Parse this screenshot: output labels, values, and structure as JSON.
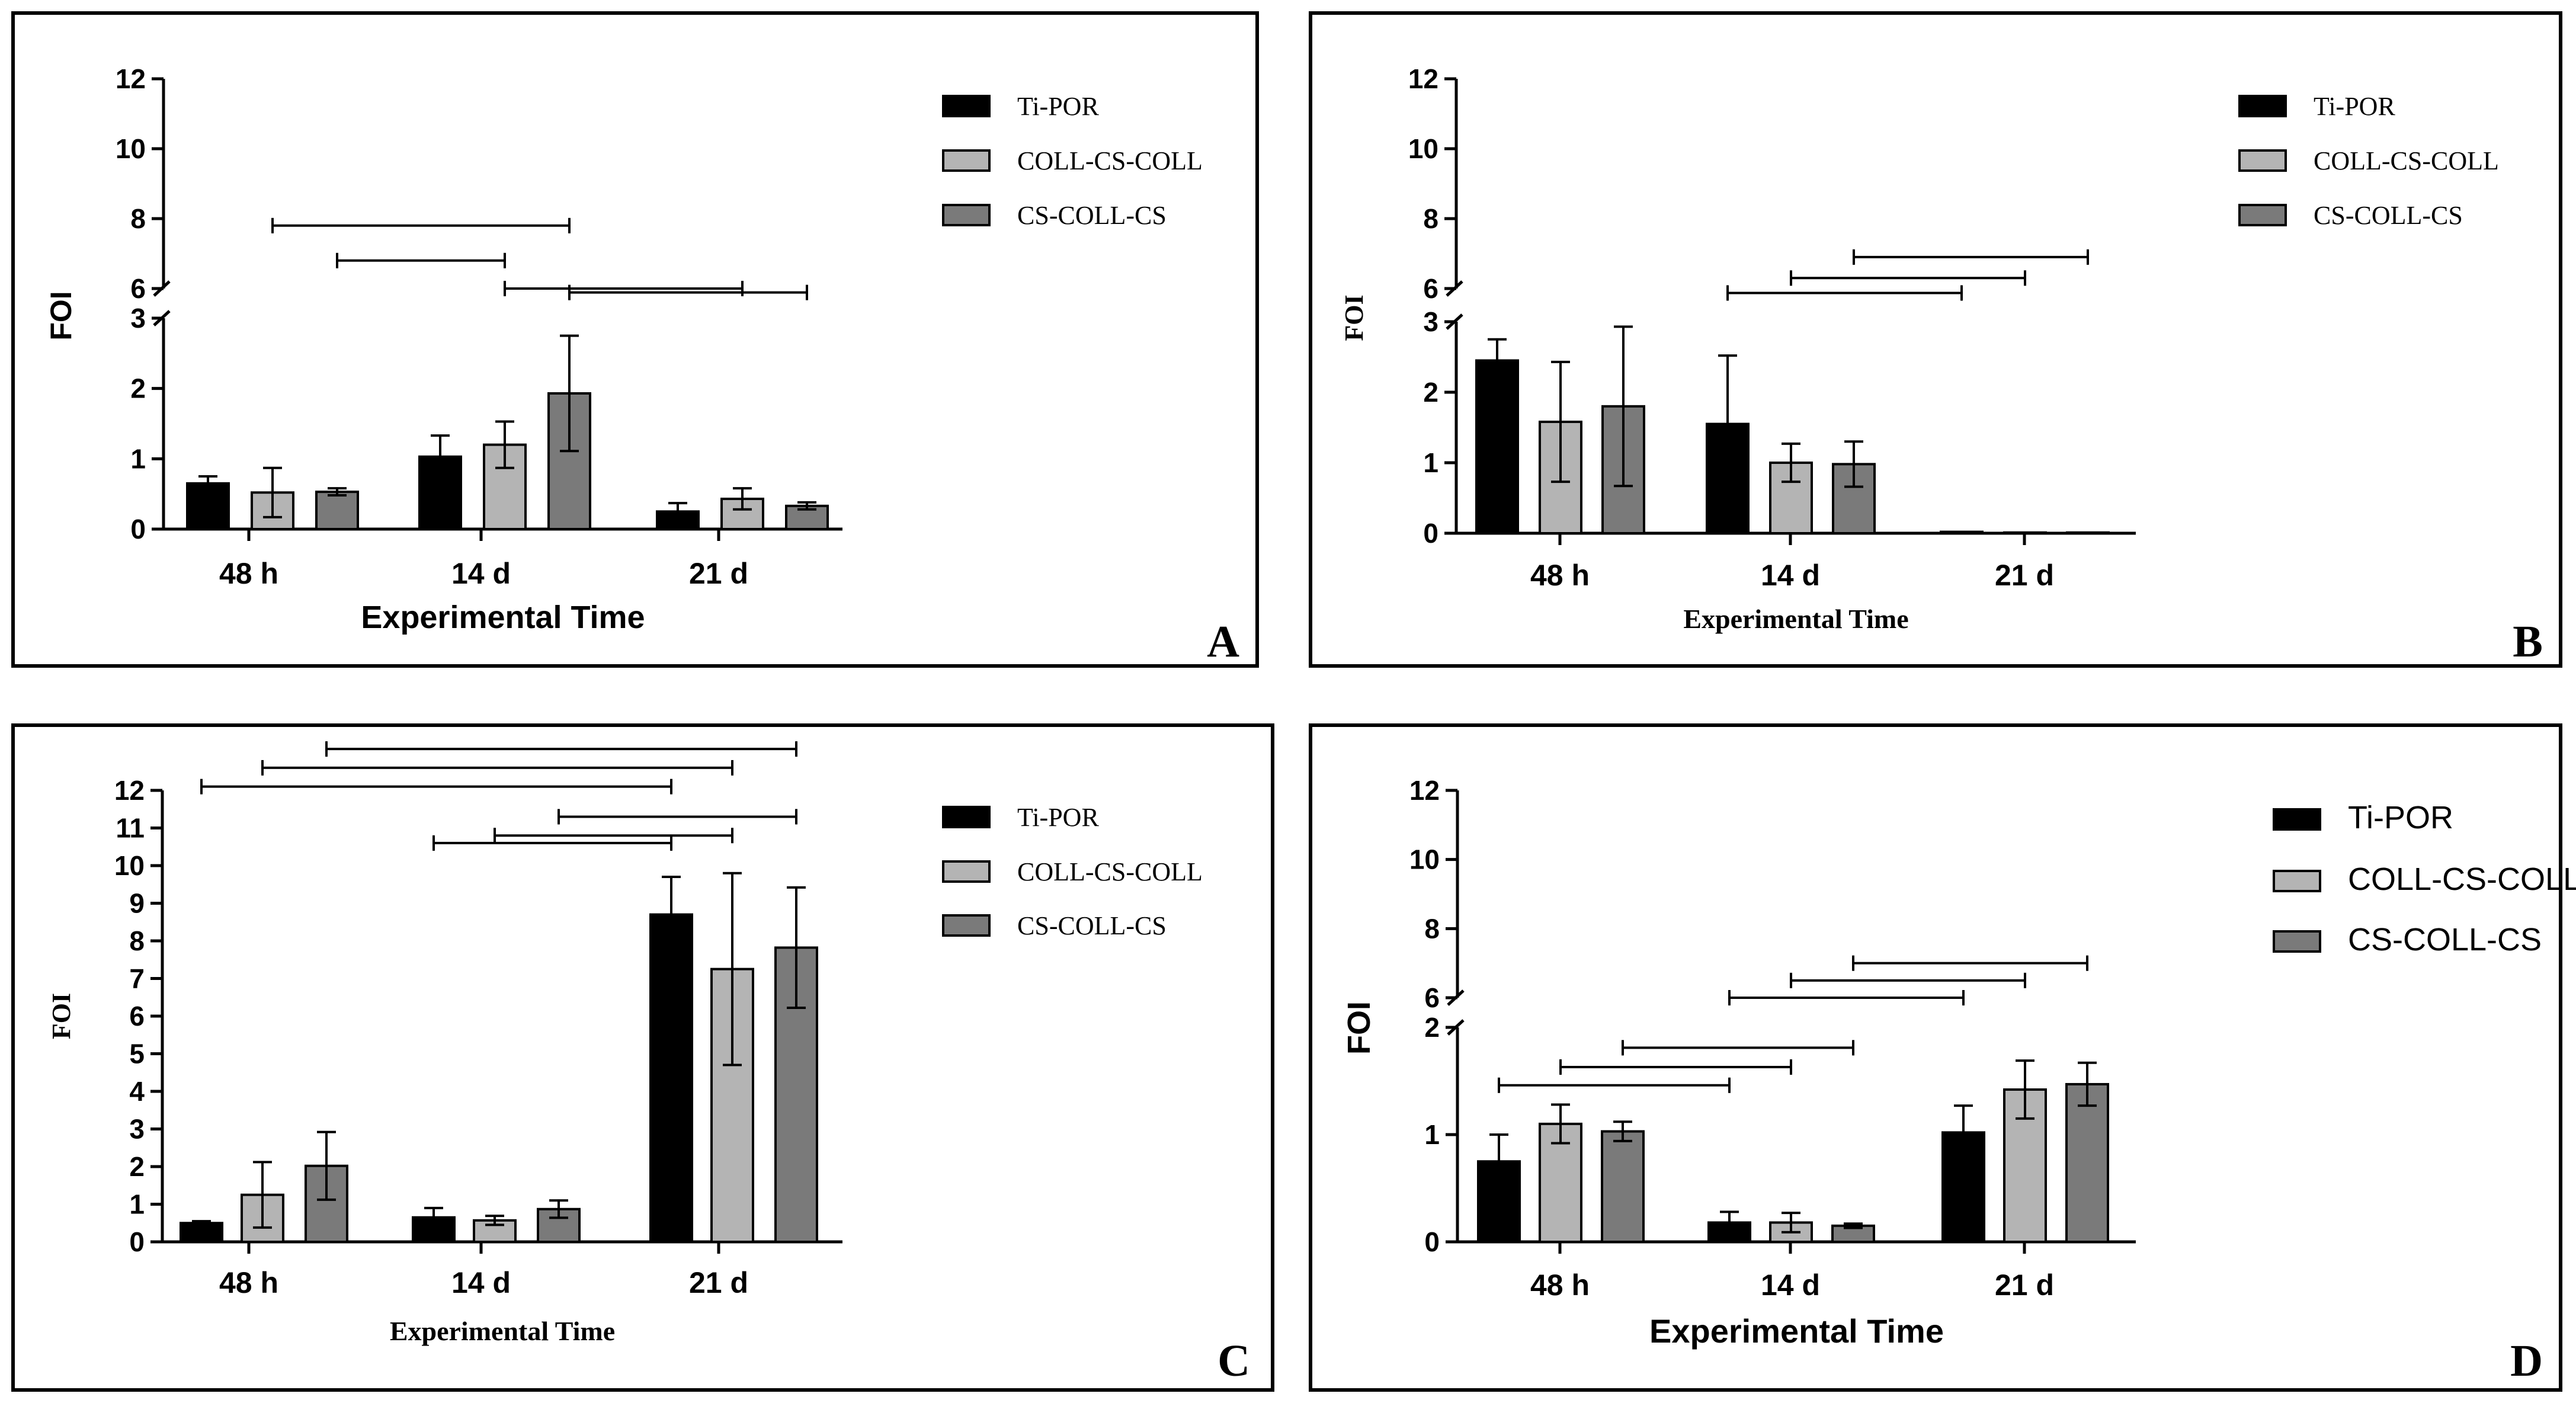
{
  "colors": {
    "series": [
      "#000000",
      "#b4b4b4",
      "#7a7a7a"
    ],
    "axis": "#000000",
    "background": "#ffffff"
  },
  "chart_data": [
    {
      "panel": "A",
      "type": "bar",
      "title": "",
      "ylabel": "FOI",
      "xlabel": "Experimental Time",
      "categories": [
        "48 h",
        "14 d",
        "21 d"
      ],
      "series": [
        {
          "name": "Ti-POR",
          "values": [
            0.65,
            1.03,
            0.25
          ],
          "errors": [
            0.1,
            0.3,
            0.12
          ]
        },
        {
          "name": "COLL-CS-COLL",
          "values": [
            0.52,
            1.2,
            0.43
          ],
          "errors": [
            0.35,
            0.33,
            0.15
          ]
        },
        {
          "name": "CS-COLL-CS",
          "values": [
            0.53,
            1.93,
            0.33
          ],
          "errors": [
            0.05,
            0.82,
            0.05
          ]
        }
      ],
      "y_lower_range": [
        0,
        3
      ],
      "y_lower_ticks": [
        "0",
        "1",
        "2",
        "3"
      ],
      "y_upper_range": [
        6,
        12
      ],
      "y_upper_ticks": [
        "6",
        "8",
        "10",
        "12"
      ],
      "significance_brackets": [
        {
          "from": [
            0,
            1
          ],
          "to": [
            1,
            2
          ],
          "level": 7.8
        },
        {
          "from": [
            0,
            2
          ],
          "to": [
            1,
            1
          ],
          "level": 6.8
        },
        {
          "from": [
            1,
            1
          ],
          "to": [
            2,
            1
          ],
          "level": 6.0
        },
        {
          "from": [
            1,
            2
          ],
          "to": [
            2,
            2
          ],
          "level": 5.6
        }
      ],
      "legend_position": "top-right",
      "label": "A"
    },
    {
      "panel": "B",
      "type": "bar",
      "title": "",
      "ylabel": "FOI",
      "xlabel": "Experimental Time",
      "categories": [
        "48 h",
        "14 d",
        "21 d"
      ],
      "series": [
        {
          "name": "Ti-POR",
          "values": [
            2.45,
            1.55,
            0.02
          ],
          "errors": [
            0.3,
            0.97,
            0
          ]
        },
        {
          "name": "COLL-CS-COLL",
          "values": [
            1.58,
            1.0,
            0.01
          ],
          "errors": [
            0.85,
            0.27,
            0
          ]
        },
        {
          "name": "CS-COLL-CS",
          "values": [
            1.8,
            0.98,
            0.01
          ],
          "errors": [
            1.13,
            0.32,
            0
          ]
        }
      ],
      "y_lower_range": [
        0,
        3
      ],
      "y_lower_ticks": [
        "0",
        "1",
        "2",
        "3"
      ],
      "y_upper_range": [
        6,
        12
      ],
      "y_upper_ticks": [
        "6",
        "8",
        "10",
        "12"
      ],
      "significance_brackets": [
        {
          "from": [
            1,
            2
          ],
          "to": [
            2,
            2
          ],
          "level": 6.9
        },
        {
          "from": [
            1,
            1
          ],
          "to": [
            2,
            1
          ],
          "level": 6.3
        },
        {
          "from": [
            1,
            0
          ],
          "to": [
            2,
            0
          ],
          "level": 5.6
        }
      ],
      "legend_position": "top-right",
      "label": "B"
    },
    {
      "panel": "C",
      "type": "bar",
      "title": "",
      "ylabel": "FOI",
      "xlabel": "Experimental Time",
      "categories": [
        "48 h",
        "14 d",
        "21 d"
      ],
      "series": [
        {
          "name": "Ti-POR",
          "values": [
            0.5,
            0.65,
            8.7
          ],
          "errors": [
            0.05,
            0.25,
            1.0
          ]
        },
        {
          "name": "COLL-CS-COLL",
          "values": [
            1.25,
            0.57,
            7.25
          ],
          "errors": [
            0.87,
            0.12,
            2.55
          ]
        },
        {
          "name": "CS-COLL-CS",
          "values": [
            2.02,
            0.87,
            7.82
          ],
          "errors": [
            0.9,
            0.23,
            1.6
          ]
        }
      ],
      "y_range": [
        0,
        12
      ],
      "y_ticks": [
        "0",
        "1",
        "2",
        "3",
        "4",
        "5",
        "6",
        "7",
        "8",
        "9",
        "10",
        "11",
        "12"
      ],
      "significance_brackets": [
        {
          "from": [
            0,
            2
          ],
          "to": [
            2,
            2
          ],
          "level": 13.1
        },
        {
          "from": [
            0,
            1
          ],
          "to": [
            2,
            1
          ],
          "level": 12.6
        },
        {
          "from": [
            0,
            0
          ],
          "to": [
            2,
            0
          ],
          "level": 12.1
        },
        {
          "from": [
            1,
            2
          ],
          "to": [
            2,
            2
          ],
          "level": 11.3
        },
        {
          "from": [
            1,
            1
          ],
          "to": [
            2,
            1
          ],
          "level": 10.8
        },
        {
          "from": [
            1,
            0
          ],
          "to": [
            2,
            0
          ],
          "level": 10.6
        }
      ],
      "legend_position": "top-right",
      "label": "C"
    },
    {
      "panel": "D",
      "type": "bar",
      "title": "",
      "ylabel": "FOI",
      "xlabel": "Experimental Time",
      "categories": [
        "48 h",
        "14 d",
        "21 d"
      ],
      "series": [
        {
          "name": "Ti-POR",
          "values": [
            0.75,
            0.18,
            1.02
          ],
          "errors": [
            0.25,
            0.1,
            0.25
          ]
        },
        {
          "name": "COLL-CS-COLL",
          "values": [
            1.1,
            0.18,
            1.42
          ],
          "errors": [
            0.18,
            0.09,
            0.27
          ]
        },
        {
          "name": "CS-COLL-CS",
          "values": [
            1.03,
            0.15,
            1.47
          ],
          "errors": [
            0.09,
            0.02,
            0.2
          ]
        }
      ],
      "y_lower_range": [
        0,
        2
      ],
      "y_lower_ticks": [
        "0",
        "1",
        "2"
      ],
      "y_upper_range": [
        6,
        12
      ],
      "y_upper_ticks": [
        "6",
        "8",
        "10",
        "12"
      ],
      "significance_brackets": [
        {
          "from": [
            1,
            2
          ],
          "to": [
            2,
            2
          ],
          "level": 7.0
        },
        {
          "from": [
            1,
            1
          ],
          "to": [
            2,
            1
          ],
          "level": 6.5
        },
        {
          "from": [
            1,
            0
          ],
          "to": [
            2,
            0
          ],
          "level": 6.0
        },
        {
          "from": [
            0,
            2
          ],
          "to": [
            1,
            2
          ],
          "level": 1.81
        },
        {
          "from": [
            0,
            1
          ],
          "to": [
            1,
            1
          ],
          "level": 1.63
        },
        {
          "from": [
            0,
            0
          ],
          "to": [
            1,
            0
          ],
          "level": 1.46
        }
      ],
      "legend_position": "top-right",
      "label": "D"
    }
  ]
}
